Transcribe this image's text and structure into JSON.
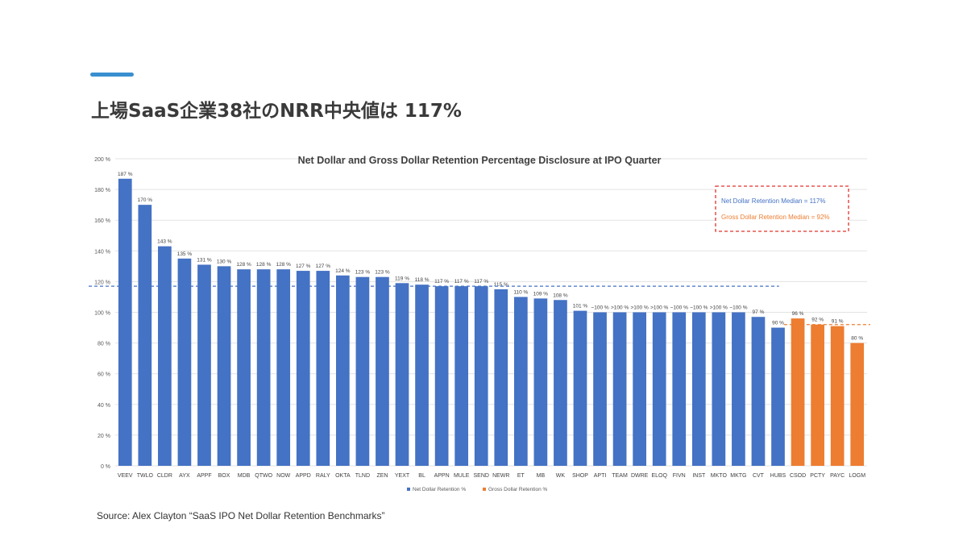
{
  "slide": {
    "title": "上場SaaS企業38社のNRR中央値は 117%",
    "source": "Source: Alex Clayton “SaaS IPO Net Dollar Retention Benchmarks”"
  },
  "colors": {
    "accent": "#3a8fd0",
    "net_series": "#4472c4",
    "gross_series": "#ed7d31",
    "median_box_border": "#e0332e",
    "gridline": "#e3e3e3"
  },
  "chart_data": {
    "type": "bar",
    "title": "Net Dollar and Gross Dollar Retention Percentage Disclosure at IPO Quarter",
    "categories": [
      "VEEV",
      "TWLO",
      "CLDR",
      "AYX",
      "APPF",
      "BOX",
      "MDB",
      "QTWO",
      "NOW",
      "APPD",
      "RALY",
      "OKTA",
      "TLND",
      "ZEN",
      "YEXT",
      "BL",
      "APPN",
      "MULE",
      "SEND",
      "NEWR",
      "ET",
      "MB",
      "WK",
      "SHOP",
      "APTI",
      "TEAM",
      "DWRE",
      "ELOQ",
      "FIVN",
      "INST",
      "MKTO",
      "MKTG",
      "CVT",
      "HUBS",
      "CSOD",
      "PCTY",
      "PAYC",
      "LOGM"
    ],
    "values": [
      187,
      170,
      143,
      135,
      131,
      130,
      128,
      128,
      128,
      127,
      127,
      124,
      123,
      123,
      119,
      118,
      117,
      117,
      117,
      115,
      110,
      109,
      108,
      101,
      100,
      100,
      100,
      100,
      100,
      100,
      100,
      100,
      97,
      90,
      96,
      92,
      91,
      80
    ],
    "value_labels": [
      "187 %",
      "170 %",
      "143 %",
      "135 %",
      "131 %",
      "130 %",
      "128 %",
      "128 %",
      "128 %",
      "127 %",
      "127 %",
      "124 %",
      "123 %",
      "123 %",
      "119 %",
      "118 %",
      "117 %",
      "117 %",
      "117 %",
      "115 %",
      "110 %",
      "109 %",
      "108 %",
      "101 %",
      "~100 %",
      ">100 %",
      ">100 %",
      ">100 %",
      "~100 %",
      "~100 %",
      ">100 %",
      "~100 %",
      "97 %",
      "90 %",
      "96 %",
      "92 %",
      "91 %",
      "80 %"
    ],
    "series_membership": [
      "net",
      "net",
      "net",
      "net",
      "net",
      "net",
      "net",
      "net",
      "net",
      "net",
      "net",
      "net",
      "net",
      "net",
      "net",
      "net",
      "net",
      "net",
      "net",
      "net",
      "net",
      "net",
      "net",
      "net",
      "net",
      "net",
      "net",
      "net",
      "net",
      "net",
      "net",
      "net",
      "net",
      "net",
      "gross",
      "gross",
      "gross",
      "gross"
    ],
    "series": [
      {
        "key": "net",
        "name": "Net Dollar Retention %",
        "color": "#4472c4"
      },
      {
        "key": "gross",
        "name": "Gross Dollar Retention %",
        "color": "#ed7d31"
      }
    ],
    "ylim": [
      0,
      200
    ],
    "yticks": [
      0,
      20,
      40,
      60,
      80,
      100,
      120,
      140,
      160,
      180,
      200
    ],
    "ytick_labels": [
      "0 %",
      "20 %",
      "40 %",
      "60 %",
      "80 %",
      "100 %",
      "120 %",
      "140 %",
      "160 %",
      "180 %",
      "200 %"
    ],
    "medians": [
      {
        "series": "net",
        "value": 117,
        "label": "Net Dollar Retention Median = 117%",
        "color": "#4472c4"
      },
      {
        "series": "gross",
        "value": 92,
        "label": "Gross Dollar Retention Median = 92%",
        "color": "#ed7d31"
      }
    ],
    "legend_position": "bottom",
    "grid": true
  }
}
